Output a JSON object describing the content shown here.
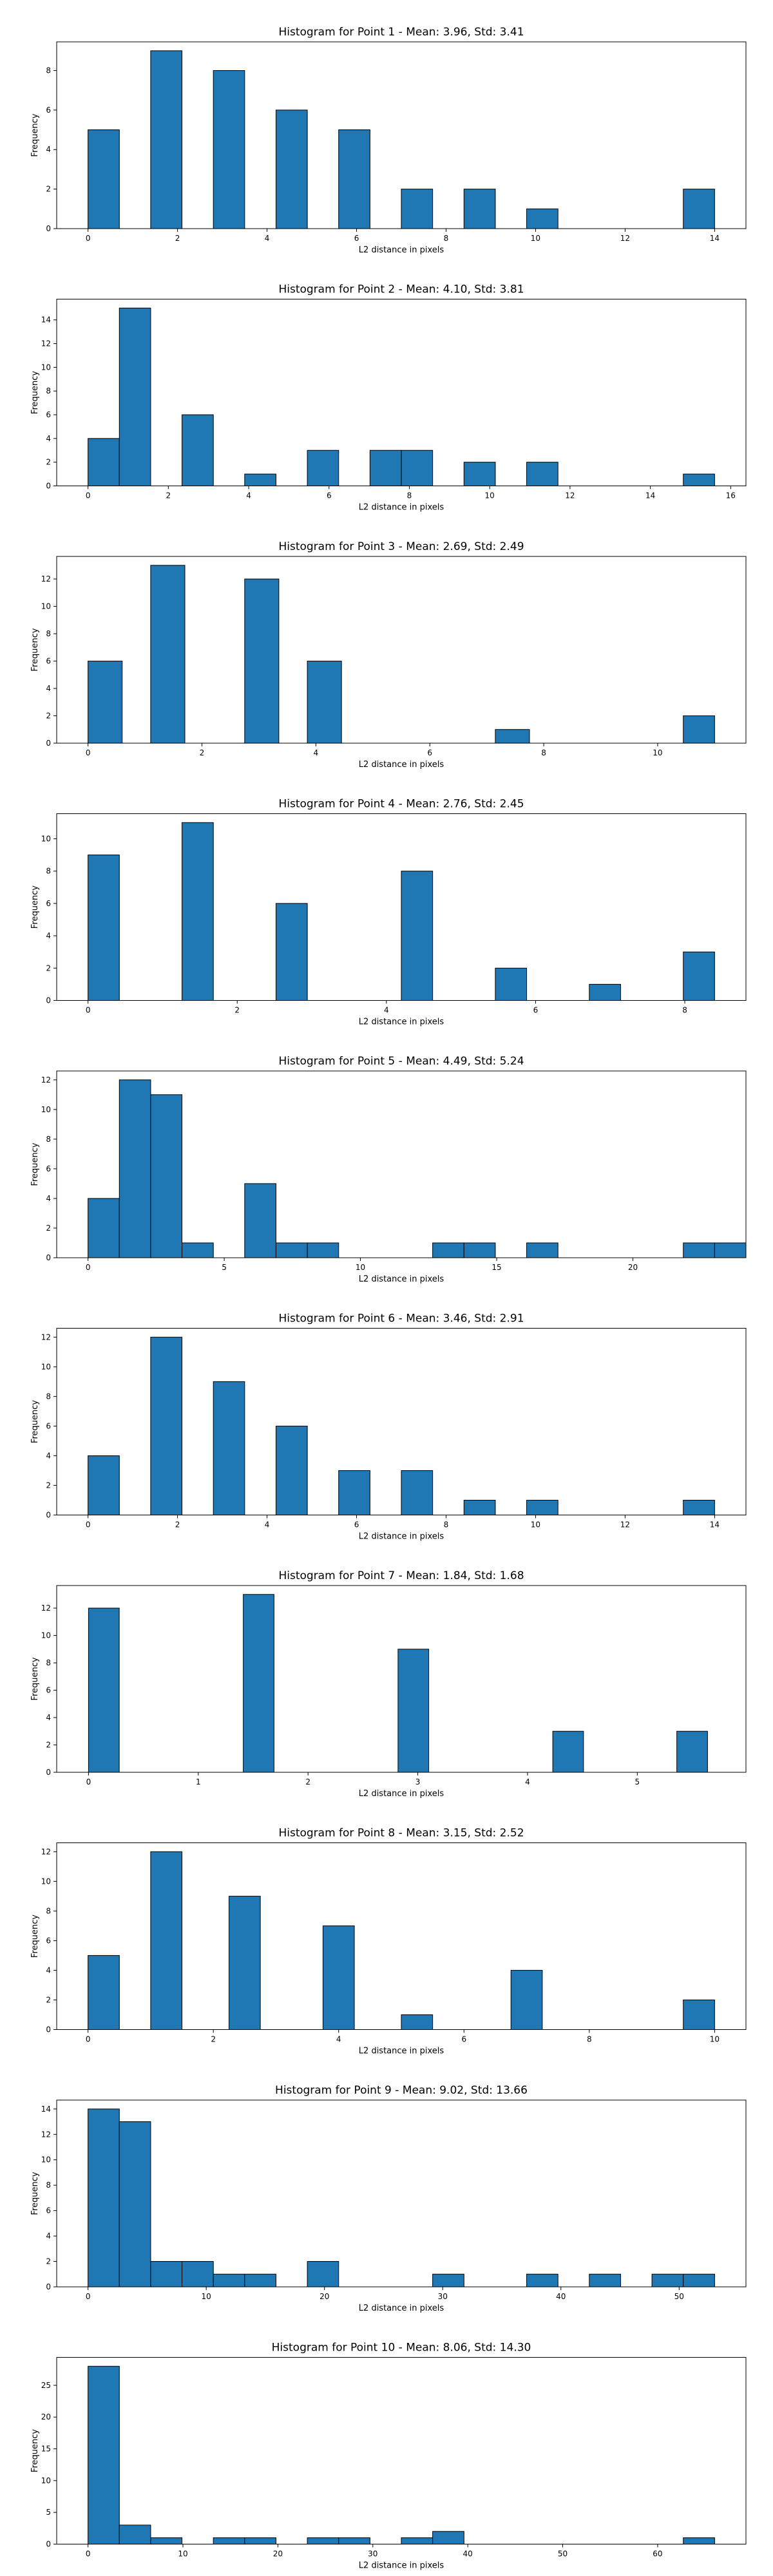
{
  "chart_data": [
    {
      "type": "bar",
      "title": "Histogram for Point 1 - Mean: 3.96, Std: 3.41",
      "xlabel": "L2 distance in pixels",
      "ylabel": "Frequency",
      "xlim": [
        -0.7,
        14.7
      ],
      "ylim": [
        0,
        9.45
      ],
      "xticks": [
        0,
        2,
        4,
        6,
        8,
        10,
        12,
        14
      ],
      "yticks": [
        0,
        2,
        4,
        6,
        8
      ],
      "bins": [
        [
          0,
          0.7
        ],
        [
          1.4,
          2.1
        ],
        [
          2.8,
          3.5
        ],
        [
          4.2,
          4.9
        ],
        [
          5.6,
          6.3
        ],
        [
          7.0,
          7.7
        ],
        [
          8.4,
          9.1
        ],
        [
          9.8,
          10.5
        ],
        [
          13.3,
          14.0
        ]
      ],
      "values": [
        5,
        9,
        8,
        6,
        5,
        2,
        2,
        1,
        2
      ]
    },
    {
      "type": "bar",
      "title": "Histogram for Point 2 - Mean: 4.10, Std: 3.81",
      "xlabel": "L2 distance in pixels",
      "ylabel": "Frequency",
      "xlim": [
        -0.78,
        16.38
      ],
      "ylim": [
        0,
        15.75
      ],
      "xticks": [
        0,
        2,
        4,
        6,
        8,
        10,
        12,
        14,
        16
      ],
      "yticks": [
        0,
        2,
        4,
        6,
        8,
        10,
        12,
        14
      ],
      "bins": [
        [
          0,
          0.78
        ],
        [
          0.78,
          1.56
        ],
        [
          2.34,
          3.12
        ],
        [
          3.9,
          4.68
        ],
        [
          5.46,
          6.24
        ],
        [
          7.02,
          7.8
        ],
        [
          7.8,
          8.58
        ],
        [
          9.36,
          10.14
        ],
        [
          10.92,
          11.7
        ],
        [
          14.82,
          15.6
        ]
      ],
      "values": [
        4,
        15,
        6,
        1,
        3,
        3,
        3,
        2,
        2,
        1
      ]
    },
    {
      "type": "bar",
      "title": "Histogram for Point 3 - Mean: 2.69, Std: 2.49",
      "xlabel": "L2 distance in pixels",
      "ylabel": "Frequency",
      "xlim": [
        -0.55,
        11.55
      ],
      "ylim": [
        0,
        13.65
      ],
      "xticks": [
        0,
        2,
        4,
        6,
        8,
        10
      ],
      "yticks": [
        0,
        2,
        4,
        6,
        8,
        10,
        12
      ],
      "bins": [
        [
          0,
          0.6
        ],
        [
          1.1,
          1.7
        ],
        [
          2.75,
          3.35
        ],
        [
          3.85,
          4.45
        ],
        [
          7.15,
          7.75
        ],
        [
          10.45,
          11.0
        ]
      ],
      "values": [
        6,
        13,
        12,
        6,
        1,
        2
      ]
    },
    {
      "type": "bar",
      "title": "Histogram for Point 4 - Mean: 2.76, Std: 2.45",
      "xlabel": "L2 distance in pixels",
      "ylabel": "Frequency",
      "xlim": [
        -0.42,
        8.82
      ],
      "ylim": [
        0,
        11.55
      ],
      "xticks": [
        0,
        2,
        4,
        6,
        8
      ],
      "yticks": [
        0,
        2,
        4,
        6,
        8,
        10
      ],
      "bins": [
        [
          0,
          0.42
        ],
        [
          1.26,
          1.68
        ],
        [
          2.52,
          2.94
        ],
        [
          4.2,
          4.62
        ],
        [
          5.46,
          5.88
        ],
        [
          6.72,
          7.14
        ],
        [
          7.98,
          8.4
        ]
      ],
      "values": [
        9,
        11,
        6,
        8,
        2,
        1,
        3
      ]
    },
    {
      "type": "bar",
      "title": "Histogram for Point 5 - Mean: 4.49, Std: 5.24",
      "xlabel": "L2 distance in pixels",
      "ylabel": "Frequency",
      "xlim": [
        -1.15,
        24.15
      ],
      "ylim": [
        0,
        12.6
      ],
      "xticks": [
        0,
        5,
        10,
        15,
        20
      ],
      "yticks": [
        0,
        2,
        4,
        6,
        8,
        10,
        12
      ],
      "bins": [
        [
          0,
          1.15
        ],
        [
          1.15,
          2.3
        ],
        [
          2.3,
          3.45
        ],
        [
          3.45,
          4.6
        ],
        [
          5.75,
          6.9
        ],
        [
          6.9,
          8.05
        ],
        [
          8.05,
          9.2
        ],
        [
          12.65,
          13.8
        ],
        [
          13.8,
          14.95
        ],
        [
          16.1,
          17.25
        ],
        [
          21.85,
          23.0
        ],
        [
          23.0,
          24.15
        ]
      ],
      "values": [
        4,
        12,
        11,
        1,
        5,
        1,
        1,
        1,
        1,
        1,
        1,
        1
      ]
    },
    {
      "type": "bar",
      "title": "Histogram for Point 6 - Mean: 3.46, Std: 2.91",
      "xlabel": "L2 distance in pixels",
      "ylabel": "Frequency",
      "xlim": [
        -0.7,
        14.7
      ],
      "ylim": [
        0,
        12.6
      ],
      "xticks": [
        0,
        2,
        4,
        6,
        8,
        10,
        12,
        14
      ],
      "yticks": [
        0,
        2,
        4,
        6,
        8,
        10,
        12
      ],
      "bins": [
        [
          0,
          0.7
        ],
        [
          1.4,
          2.1
        ],
        [
          2.8,
          3.5
        ],
        [
          4.2,
          4.9
        ],
        [
          5.6,
          6.3
        ],
        [
          7.0,
          7.7
        ],
        [
          8.4,
          9.1
        ],
        [
          9.8,
          10.5
        ],
        [
          13.3,
          14.0
        ]
      ],
      "values": [
        4,
        12,
        9,
        6,
        3,
        3,
        1,
        1,
        1
      ]
    },
    {
      "type": "bar",
      "title": "Histogram for Point 7 - Mean: 1.84, Std: 1.68",
      "xlabel": "L2 distance in pixels",
      "ylabel": "Frequency",
      "xlim": [
        -0.29,
        5.99
      ],
      "ylim": [
        0,
        13.65
      ],
      "xticks": [
        0,
        1,
        2,
        3,
        4,
        5
      ],
      "yticks": [
        0,
        2,
        4,
        6,
        8,
        10,
        12
      ],
      "bins": [
        [
          0,
          0.28
        ],
        [
          1.41,
          1.69
        ],
        [
          2.82,
          3.1
        ],
        [
          4.23,
          4.51
        ],
        [
          5.36,
          5.64
        ]
      ],
      "values": [
        12,
        13,
        9,
        3,
        3
      ]
    },
    {
      "type": "bar",
      "title": "Histogram for Point 8 - Mean: 3.15, Std: 2.52",
      "xlabel": "L2 distance in pixels",
      "ylabel": "Frequency",
      "xlim": [
        -0.5,
        10.5
      ],
      "ylim": [
        0,
        12.6
      ],
      "xticks": [
        0,
        2,
        4,
        6,
        8,
        10
      ],
      "yticks": [
        0,
        2,
        4,
        6,
        8,
        10,
        12
      ],
      "bins": [
        [
          0,
          0.5
        ],
        [
          1.0,
          1.5
        ],
        [
          2.25,
          2.75
        ],
        [
          3.75,
          4.25
        ],
        [
          5.0,
          5.5
        ],
        [
          6.75,
          7.25
        ],
        [
          9.5,
          10.0
        ]
      ],
      "values": [
        5,
        12,
        9,
        7,
        1,
        4,
        2
      ]
    },
    {
      "type": "bar",
      "title": "Histogram for Point 9 - Mean: 9.02, Std: 13.66",
      "xlabel": "L2 distance in pixels",
      "ylabel": "Frequency",
      "xlim": [
        -2.65,
        55.65
      ],
      "ylim": [
        0,
        14.7
      ],
      "xticks": [
        0,
        10,
        20,
        30,
        40,
        50
      ],
      "yticks": [
        0,
        2,
        4,
        6,
        8,
        10,
        12,
        14
      ],
      "bins": [
        [
          0,
          2.65
        ],
        [
          2.65,
          5.3
        ],
        [
          5.3,
          7.95
        ],
        [
          7.95,
          10.6
        ],
        [
          10.6,
          13.25
        ],
        [
          13.25,
          15.9
        ],
        [
          18.55,
          21.2
        ],
        [
          29.15,
          31.8
        ],
        [
          37.1,
          39.75
        ],
        [
          42.4,
          45.05
        ],
        [
          47.7,
          50.35
        ],
        [
          50.35,
          53.0
        ]
      ],
      "values": [
        14,
        13,
        2,
        2,
        1,
        1,
        2,
        1,
        1,
        1,
        1,
        1
      ]
    },
    {
      "type": "bar",
      "title": "Histogram for Point 10 - Mean: 8.06, Std: 14.30",
      "xlabel": "L2 distance in pixels",
      "ylabel": "Frequency",
      "xlim": [
        -3.3,
        69.3
      ],
      "ylim": [
        0,
        29.4
      ],
      "xticks": [
        0,
        10,
        20,
        30,
        40,
        50,
        60
      ],
      "yticks": [
        0,
        5,
        10,
        15,
        20,
        25
      ],
      "bins": [
        [
          0,
          3.3
        ],
        [
          3.3,
          6.6
        ],
        [
          6.6,
          9.9
        ],
        [
          13.2,
          16.5
        ],
        [
          16.5,
          19.8
        ],
        [
          23.1,
          26.4
        ],
        [
          26.4,
          29.7
        ],
        [
          33.0,
          36.3
        ],
        [
          36.3,
          39.6
        ],
        [
          62.7,
          66.0
        ]
      ],
      "values": [
        28,
        3,
        1,
        1,
        1,
        1,
        1,
        1,
        2,
        1
      ]
    }
  ]
}
